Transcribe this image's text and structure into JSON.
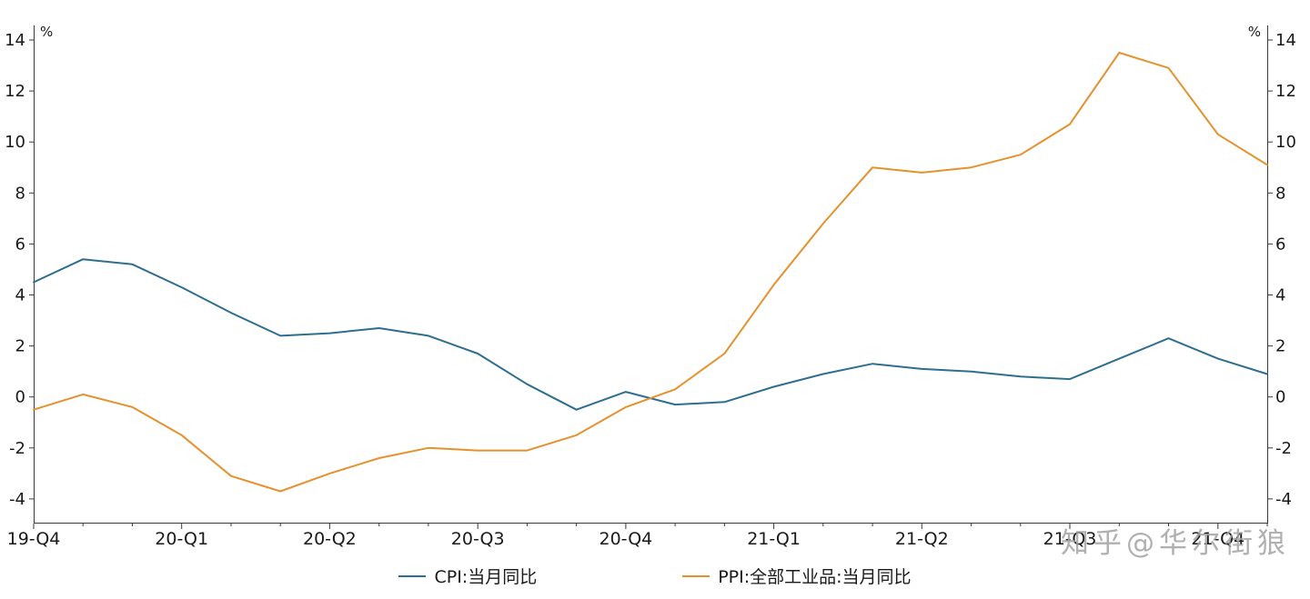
{
  "chart": {
    "background": "#ffffff",
    "watermark": "知乎@华尔街狼",
    "colors": {
      "cpi_line": "#2e6e90",
      "ppi_line": "#e5912d",
      "axis": "#3a3a3a",
      "tick_label": "#1a1a1a",
      "watermark": "#a3a3a3"
    },
    "legend": [
      {
        "label": "CPI:当月同比",
        "color": "#2e6e90"
      },
      {
        "label": "PPI:全部工业品:当月同比",
        "color": "#e5912d"
      }
    ]
  },
  "chart_data": {
    "type": "line",
    "title": "",
    "x_unit": "month",
    "x": [
      "2019-12",
      "2020-01",
      "2020-02",
      "2020-03",
      "2020-04",
      "2020-05",
      "2020-06",
      "2020-07",
      "2020-08",
      "2020-09",
      "2020-10",
      "2020-11",
      "2020-12",
      "2021-01",
      "2021-02",
      "2021-03",
      "2021-04",
      "2021-05",
      "2021-06",
      "2021-07",
      "2021-08",
      "2021-09",
      "2021-10",
      "2021-11",
      "2021-12",
      "2022-01"
    ],
    "x_tick_labels": [
      "19-Q4",
      "20-Q1",
      "20-Q2",
      "20-Q3",
      "20-Q4",
      "21-Q1",
      "21-Q2",
      "21-Q3",
      "21-Q4"
    ],
    "x_tick_indices": [
      0,
      3,
      6,
      9,
      12,
      15,
      18,
      21,
      24
    ],
    "y_ticks": [
      -4,
      -2,
      0,
      2,
      4,
      6,
      8,
      10,
      12,
      14
    ],
    "ylim": [
      -4.93,
      14.57
    ],
    "y_unit": "%",
    "grid": false,
    "legend_position": "bottom-center",
    "series": [
      {
        "name": "CPI:当月同比",
        "color": "#2e6e90",
        "values": [
          4.5,
          5.4,
          5.2,
          4.3,
          3.3,
          2.4,
          2.5,
          2.7,
          2.4,
          1.7,
          0.5,
          -0.5,
          0.2,
          -0.3,
          -0.2,
          0.4,
          0.9,
          1.3,
          1.1,
          1.0,
          0.8,
          0.7,
          1.5,
          2.3,
          1.5,
          0.9
        ]
      },
      {
        "name": "PPI:全部工业品:当月同比",
        "color": "#e5912d",
        "values": [
          -0.5,
          0.1,
          -0.4,
          -1.5,
          -3.1,
          -3.7,
          -3.0,
          -2.4,
          -2.0,
          -2.1,
          -2.1,
          -1.5,
          -0.4,
          0.3,
          1.7,
          4.4,
          6.8,
          9.0,
          8.8,
          9.0,
          9.5,
          10.7,
          13.5,
          12.9,
          10.3,
          9.1
        ]
      }
    ]
  }
}
